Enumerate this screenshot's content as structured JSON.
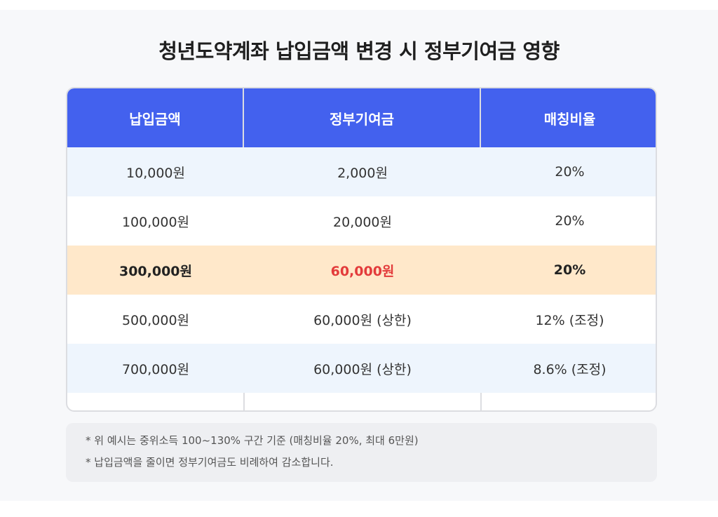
{
  "title": "청년도약계좌 납입금액 변경 시 정부기여금 영향",
  "table": {
    "headers": [
      "납입금액",
      "정부기여금",
      "매칭비율"
    ],
    "rows": [
      [
        "10,000원",
        "2,000원",
        "20%"
      ],
      [
        "100,000원",
        "20,000원",
        "20%"
      ],
      [
        "300,000원",
        "60,000원",
        "20%"
      ],
      [
        "500,000원",
        "60,000원 (상한)",
        "12% (조정)"
      ],
      [
        "700,000원",
        "60,000원 (상한)",
        "8.6% (조정)"
      ]
    ],
    "highlight_row_index": 2
  },
  "notes": [
    "* 위 예시는 중위소득 100~130% 구간 기준 (매칭비율 20%, 최대 6만원)",
    "* 납입금액을 줄이면 정부기여금도 비례하여 감소합니다."
  ],
  "colors": {
    "header_bg": "#4361ee",
    "highlight_bg": "#ffe8ca",
    "highlight_text": "#e33b3b",
    "stripe_bg": "#eef5fd"
  }
}
